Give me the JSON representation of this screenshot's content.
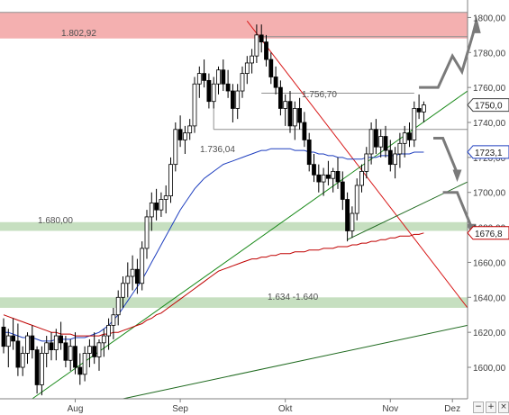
{
  "chart_data": {
    "type": "candlestick",
    "x_labels": [
      "Aug",
      "Sep",
      "Okt",
      "Nov",
      "Dez"
    ],
    "y_ticks": [
      1600,
      1620,
      1640,
      1660,
      1680,
      1700,
      1720,
      1740,
      1760,
      1780,
      1800
    ],
    "y_tick_labels": [
      "1600,00",
      "1620,00",
      "1640,00",
      "1660,00",
      "1680,00",
      "1700,00",
      "1720,00",
      "1740,00",
      "1760,00",
      "1780,00",
      "1800,00"
    ],
    "ylim": [
      1582,
      1810
    ],
    "annotations": {
      "resistance_high": "1.802,92",
      "resistance_mid": "1.756,70",
      "level_low": "1.736,04",
      "support_1680": "1.680,00",
      "support_zone": "1.634 -1.640"
    },
    "price_tags": [
      {
        "label": "1750,0",
        "value": 1750.0,
        "color": "#404040"
      },
      {
        "label": "1723,1",
        "value": 1723.1,
        "color": "#1f3fbf"
      },
      {
        "label": "1676,8",
        "value": 1676.8,
        "color": "#c00000"
      }
    ],
    "zones": [
      {
        "from": 1788,
        "to": 1802.92,
        "color": "#f4b0b0"
      },
      {
        "from": 1678,
        "to": 1683,
        "color": "#c6dfc0"
      },
      {
        "from": 1634,
        "to": 1640,
        "color": "#c6dfc0"
      }
    ],
    "candles": [
      [
        1623,
        1628,
        1608,
        1612
      ],
      [
        1612,
        1622,
        1600,
        1618
      ],
      [
        1618,
        1628,
        1610,
        1615
      ],
      [
        1615,
        1625,
        1595,
        1600
      ],
      [
        1600,
        1612,
        1595,
        1608
      ],
      [
        1608,
        1620,
        1602,
        1618
      ],
      [
        1618,
        1624,
        1605,
        1610
      ],
      [
        1610,
        1612,
        1585,
        1590
      ],
      [
        1590,
        1612,
        1584,
        1608
      ],
      [
        1608,
        1618,
        1600,
        1614
      ],
      [
        1614,
        1620,
        1604,
        1610
      ],
      [
        1610,
        1622,
        1604,
        1618
      ],
      [
        1618,
        1626,
        1610,
        1614
      ],
      [
        1614,
        1618,
        1600,
        1604
      ],
      [
        1604,
        1616,
        1598,
        1612
      ],
      [
        1612,
        1620,
        1596,
        1600
      ],
      [
        1600,
        1608,
        1590,
        1596
      ],
      [
        1596,
        1612,
        1592,
        1608
      ],
      [
        1608,
        1616,
        1600,
        1612
      ],
      [
        1612,
        1620,
        1602,
        1606
      ],
      [
        1606,
        1616,
        1598,
        1614
      ],
      [
        1614,
        1622,
        1606,
        1618
      ],
      [
        1618,
        1628,
        1610,
        1624
      ],
      [
        1624,
        1634,
        1616,
        1630
      ],
      [
        1630,
        1644,
        1624,
        1640
      ],
      [
        1640,
        1652,
        1634,
        1648
      ],
      [
        1648,
        1660,
        1640,
        1652
      ],
      [
        1652,
        1664,
        1644,
        1656
      ],
      [
        1656,
        1662,
        1642,
        1648
      ],
      [
        1648,
        1672,
        1644,
        1668
      ],
      [
        1668,
        1690,
        1662,
        1686
      ],
      [
        1686,
        1700,
        1678,
        1694
      ],
      [
        1694,
        1702,
        1684,
        1690
      ],
      [
        1690,
        1700,
        1686,
        1696
      ],
      [
        1696,
        1704,
        1688,
        1698
      ],
      [
        1698,
        1720,
        1694,
        1716
      ],
      [
        1716,
        1740,
        1712,
        1736
      ],
      [
        1736,
        1744,
        1726,
        1730
      ],
      [
        1730,
        1738,
        1722,
        1734
      ],
      [
        1734,
        1742,
        1730,
        1738
      ],
      [
        1738,
        1766,
        1734,
        1762
      ],
      [
        1762,
        1772,
        1754,
        1768
      ],
      [
        1768,
        1776,
        1760,
        1764
      ],
      [
        1764,
        1768,
        1748,
        1752
      ],
      [
        1752,
        1766,
        1748,
        1762
      ],
      [
        1762,
        1772,
        1756,
        1770
      ],
      [
        1770,
        1776,
        1758,
        1762
      ],
      [
        1762,
        1770,
        1754,
        1758
      ],
      [
        1758,
        1762,
        1740,
        1748
      ],
      [
        1748,
        1762,
        1742,
        1758
      ],
      [
        1758,
        1772,
        1754,
        1768
      ],
      [
        1768,
        1778,
        1762,
        1774
      ],
      [
        1774,
        1782,
        1768,
        1778
      ],
      [
        1778,
        1796,
        1774,
        1790
      ],
      [
        1790,
        1796,
        1780,
        1786
      ],
      [
        1786,
        1790,
        1772,
        1776
      ],
      [
        1776,
        1780,
        1762,
        1766
      ],
      [
        1766,
        1772,
        1756,
        1760
      ],
      [
        1760,
        1764,
        1744,
        1748
      ],
      [
        1748,
        1756,
        1738,
        1752
      ],
      [
        1752,
        1758,
        1734,
        1738
      ],
      [
        1738,
        1752,
        1730,
        1748
      ],
      [
        1748,
        1754,
        1736,
        1740
      ],
      [
        1740,
        1746,
        1726,
        1730
      ],
      [
        1730,
        1734,
        1712,
        1716
      ],
      [
        1716,
        1722,
        1706,
        1710
      ],
      [
        1710,
        1716,
        1700,
        1706
      ],
      [
        1706,
        1714,
        1698,
        1710
      ],
      [
        1710,
        1718,
        1704,
        1708
      ],
      [
        1708,
        1714,
        1700,
        1712
      ],
      [
        1712,
        1720,
        1702,
        1706
      ],
      [
        1706,
        1712,
        1690,
        1696
      ],
      [
        1696,
        1700,
        1672,
        1678
      ],
      [
        1678,
        1692,
        1674,
        1688
      ],
      [
        1688,
        1708,
        1684,
        1704
      ],
      [
        1704,
        1716,
        1700,
        1712
      ],
      [
        1712,
        1726,
        1708,
        1722
      ],
      [
        1722,
        1740,
        1716,
        1736
      ],
      [
        1736,
        1742,
        1722,
        1726
      ],
      [
        1726,
        1736,
        1720,
        1732
      ],
      [
        1732,
        1738,
        1720,
        1724
      ],
      [
        1724,
        1730,
        1712,
        1716
      ],
      [
        1716,
        1726,
        1708,
        1722
      ],
      [
        1722,
        1734,
        1714,
        1728
      ],
      [
        1728,
        1738,
        1720,
        1734
      ],
      [
        1734,
        1740,
        1726,
        1730
      ],
      [
        1730,
        1752,
        1726,
        1748
      ],
      [
        1748,
        1756,
        1742,
        1746
      ],
      [
        1746,
        1752,
        1740,
        1750
      ]
    ],
    "series": [
      {
        "name": "",
        "color": "#1f3fbf",
        "values": [
          1620,
          1620,
          1619,
          1618,
          1617,
          1617,
          1617,
          1616,
          1615,
          1615,
          1615,
          1616,
          1616,
          1616,
          1616,
          1617,
          1617,
          1617,
          1618,
          1619,
          1620,
          1622,
          1624,
          1627,
          1630,
          1634,
          1638,
          1642,
          1646,
          1650,
          1655,
          1660,
          1665,
          1670,
          1675,
          1680,
          1685,
          1690,
          1694,
          1698,
          1702,
          1705,
          1708,
          1710,
          1712,
          1714,
          1716,
          1717,
          1718,
          1719,
          1720,
          1721,
          1722,
          1723,
          1724,
          1724,
          1725,
          1725,
          1725,
          1725,
          1725,
          1724,
          1724,
          1724,
          1723,
          1723,
          1722,
          1722,
          1721,
          1721,
          1720,
          1720,
          1719,
          1719,
          1719,
          1719,
          1720,
          1720,
          1720,
          1721,
          1721,
          1721,
          1721,
          1722,
          1722,
          1722,
          1723,
          1723,
          1723
        ]
      },
      {
        "name": "",
        "color": "#c00000",
        "values": [
          1630,
          1629,
          1628,
          1627,
          1626,
          1625,
          1624,
          1623,
          1622,
          1621,
          1620,
          1620,
          1619,
          1619,
          1619,
          1618,
          1618,
          1618,
          1618,
          1618,
          1618,
          1619,
          1619,
          1620,
          1620,
          1621,
          1622,
          1623,
          1624,
          1625,
          1627,
          1628,
          1630,
          1631,
          1633,
          1635,
          1637,
          1639,
          1641,
          1643,
          1645,
          1647,
          1649,
          1651,
          1653,
          1655,
          1656,
          1657,
          1658,
          1659,
          1660,
          1661,
          1662,
          1662,
          1663,
          1663,
          1664,
          1664,
          1665,
          1665,
          1665,
          1666,
          1666,
          1666,
          1667,
          1667,
          1667,
          1668,
          1668,
          1668,
          1669,
          1669,
          1669,
          1670,
          1670,
          1671,
          1671,
          1672,
          1672,
          1673,
          1673,
          1674,
          1674,
          1675,
          1675,
          1675,
          1676,
          1676,
          1676.8
        ]
      }
    ]
  },
  "ui": {
    "icon_labels": [
      "−",
      "+",
      "×"
    ]
  }
}
